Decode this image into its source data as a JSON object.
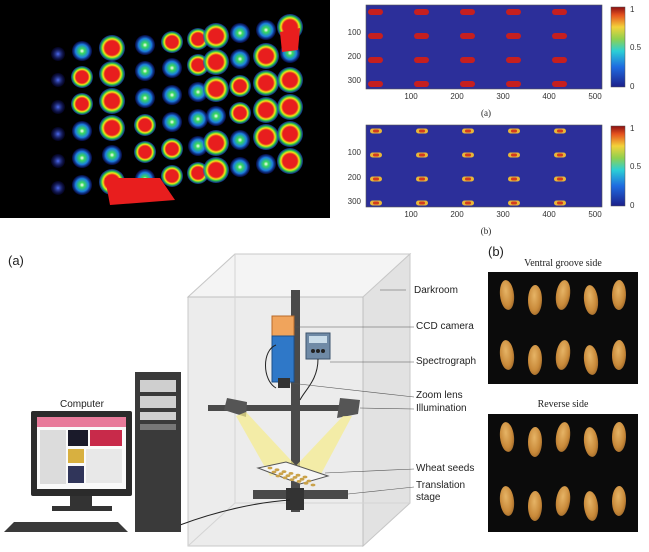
{
  "heatmaps": {
    "y_ticks": [
      "100",
      "200",
      "300"
    ],
    "x_ticks": [
      "100",
      "200",
      "300",
      "400",
      "500"
    ],
    "colorbar_ticks": [
      "1",
      "0.5",
      "0"
    ],
    "colors": {
      "background": "#2a2f8f",
      "high": "#d21c1c",
      "mid": "#f4c430",
      "low_mid": "#36c0d6"
    }
  },
  "caption_a": "(a)",
  "caption_b": "(b)",
  "setup": {
    "panel_label": "(a)",
    "labels": {
      "darkroom": "Darkroom",
      "ccd_camera": "CCD camera",
      "spectrograph": "Spectrograph",
      "zoom_lens": "Zoom lens",
      "illumination": "Illumination",
      "wheat_seeds": "Wheat seeds",
      "translation_stage_1": "Translation",
      "translation_stage_2": "stage",
      "computer": "Computer"
    }
  },
  "photos": {
    "panel_label": "(b)",
    "ventral_title": "Ventral groove side",
    "reverse_title": "Reverse side"
  }
}
